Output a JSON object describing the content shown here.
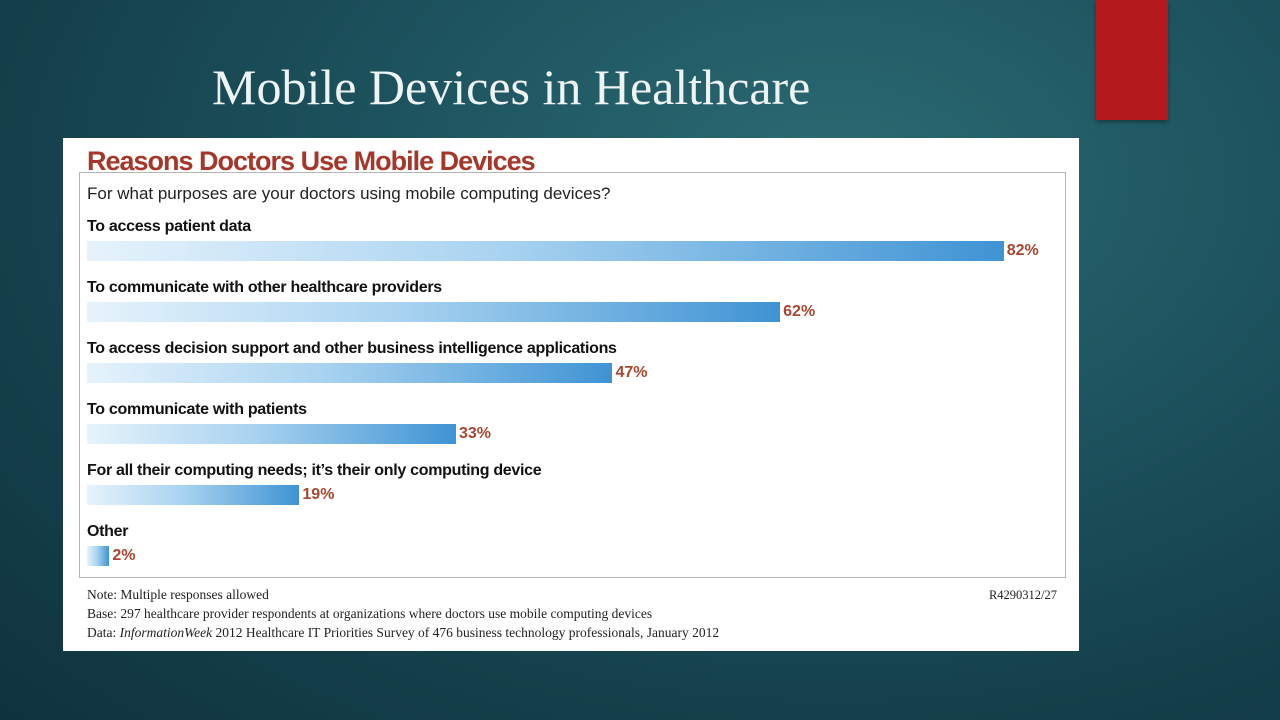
{
  "slide": {
    "title": "Mobile Devices in Healthcare"
  },
  "colors": {
    "accent_bar": "#b3181d",
    "chart_title": "#a5362a",
    "bar_end": "#3f93d4",
    "value_label": "#a8472f"
  },
  "chart_data": {
    "type": "bar",
    "orientation": "horizontal",
    "title": "Reasons Doctors Use Mobile Devices",
    "subtitle": "For what purposes are your doctors using mobile computing devices?",
    "categories": [
      "To access patient data",
      "To communicate with other healthcare providers",
      "To access decision support and other business intelligence applications",
      "To communicate with patients",
      "For all their computing needs; it’s their only computing device",
      "Other"
    ],
    "values": [
      82,
      62,
      47,
      33,
      19,
      2
    ],
    "value_labels": [
      "82%",
      "62%",
      "47%",
      "33%",
      "19%",
      "2%"
    ],
    "unit": "%",
    "xlim": [
      0,
      100
    ],
    "grid": false,
    "legend": "none"
  },
  "notes": {
    "note": "Note: Multiple responses allowed",
    "base": "Base: 297 healthcare provider respondents at organizations where doctors use mobile computing devices",
    "data_prefix": "Data: ",
    "data_source": "InformationWeek",
    "data_suffix": " 2012 Healthcare IT Priorities Survey of 476 business technology professionals, January 2012",
    "report_code": "R4290312/27"
  }
}
